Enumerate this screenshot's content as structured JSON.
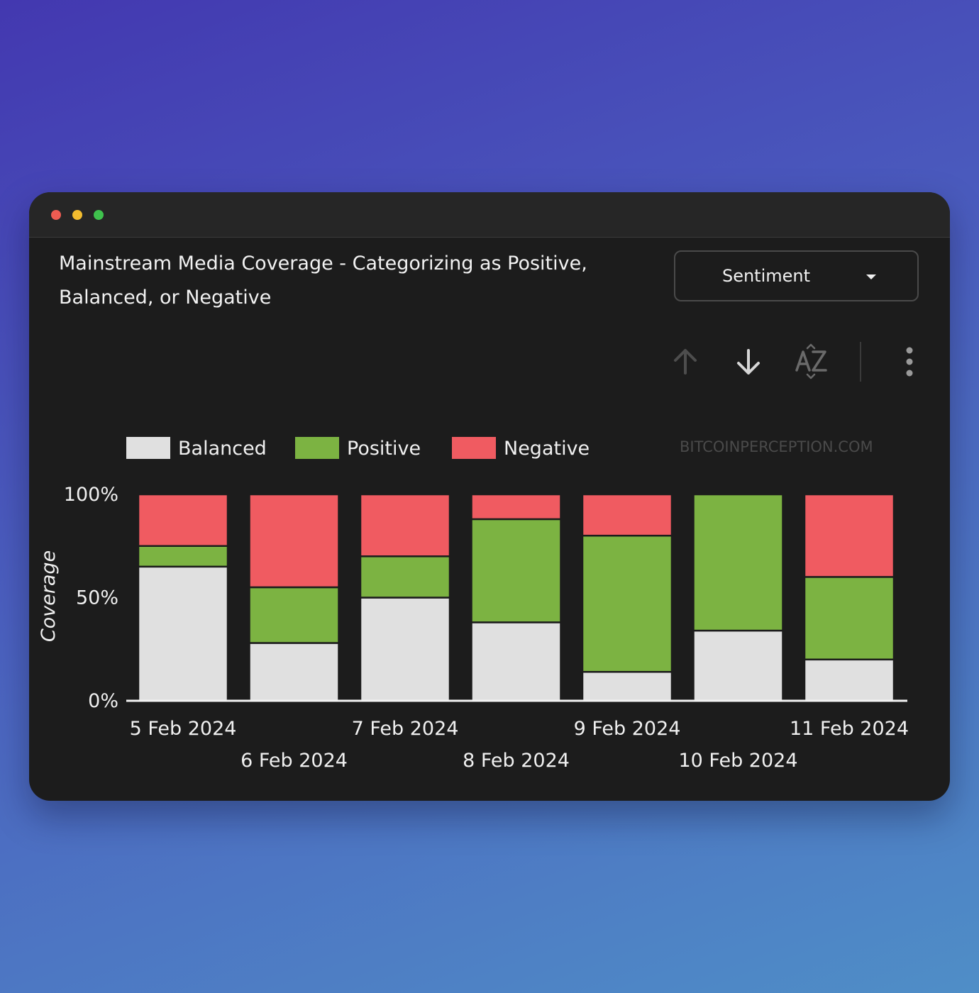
{
  "window": {
    "controls": [
      "close",
      "minimize",
      "maximize"
    ]
  },
  "card": {
    "title": "Mainstream Media Coverage - Categorizing as Positive, Balanced, or Negative"
  },
  "dropdown": {
    "value": "Sentiment",
    "icon": "caret-down-icon"
  },
  "toolbar": {
    "icons": [
      "sort-ascending-icon",
      "sort-descending-icon",
      "sort-alphabetical-icon",
      "more-vertical-icon"
    ]
  },
  "colors": {
    "balanced": "#e0e0e0",
    "positive": "#7cb342",
    "negative": "#f05b61",
    "background": "#1c1c1c"
  },
  "chart_data": {
    "type": "bar",
    "stacked": true,
    "normalized": true,
    "categories": [
      "5 Feb 2024",
      "6 Feb 2024",
      "7 Feb 2024",
      "8 Feb 2024",
      "9 Feb 2024",
      "10 Feb 2024",
      "11 Feb 2024"
    ],
    "series": [
      {
        "name": "Balanced",
        "values": [
          65,
          28,
          50,
          38,
          14,
          34,
          20
        ]
      },
      {
        "name": "Positive",
        "values": [
          10,
          27,
          20,
          50,
          66,
          66,
          40
        ]
      },
      {
        "name": "Negative",
        "values": [
          25,
          45,
          30,
          12,
          20,
          0,
          40
        ]
      }
    ],
    "ylabel": "Coverage",
    "yticks": [
      "0%",
      "50%",
      "100%"
    ],
    "ylim": [
      0,
      100
    ],
    "legend_position": "top-left",
    "watermark": "BITCOINPERCEPTION.COM",
    "grid": false
  }
}
